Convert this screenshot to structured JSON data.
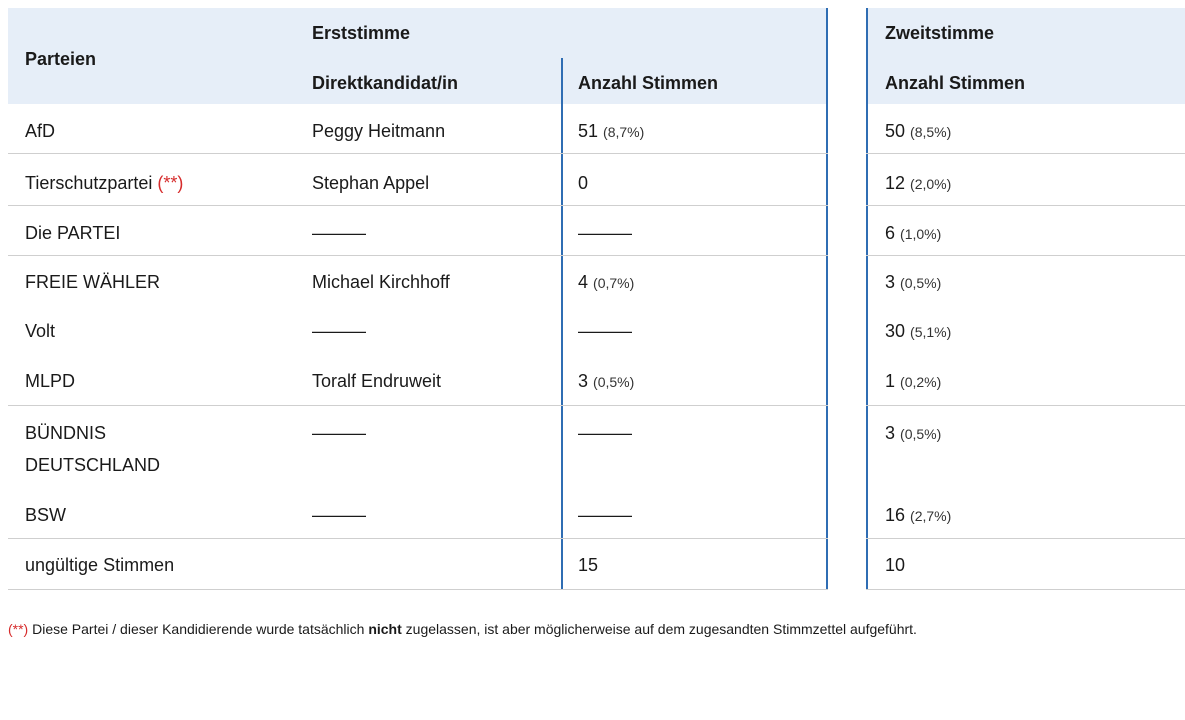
{
  "header": {
    "parteien": "Parteien",
    "erststimme": "Erststimme",
    "zweitstimme": "Zweitstimme",
    "direktkandidat": "Direktkandidat/in",
    "anzahl_erst": "Anzahl Stimmen",
    "anzahl_zweit": "Anzahl Stimmen"
  },
  "rows": [
    {
      "party": "AfD",
      "marker": "",
      "candidate": "Peggy Heitmann",
      "erst": "51",
      "erst_pct": "(8,7%)",
      "zweit": "50",
      "zweit_pct": "(8,5%)"
    },
    {
      "party": "Tierschutzpartei",
      "marker": "(**)",
      "candidate": "Stephan Appel",
      "erst": "0",
      "erst_pct": "",
      "zweit": "12",
      "zweit_pct": "(2,0%)"
    },
    {
      "party": "Die PARTEI",
      "marker": "",
      "candidate": "———",
      "erst": "———",
      "erst_pct": "",
      "zweit": "6",
      "zweit_pct": "(1,0%)"
    },
    {
      "party": "FREIE WÄHLER",
      "marker": "",
      "candidate": "Michael Kirchhoff",
      "erst": "4",
      "erst_pct": "(0,7%)",
      "zweit": "3",
      "zweit_pct": "(0,5%)"
    },
    {
      "party": "Volt",
      "marker": "",
      "candidate": "———",
      "erst": "———",
      "erst_pct": "",
      "zweit": "30",
      "zweit_pct": "(5,1%)"
    },
    {
      "party": "MLPD",
      "marker": "",
      "candidate": "Toralf Endruweit",
      "erst": "3",
      "erst_pct": "(0,5%)",
      "zweit": "1",
      "zweit_pct": "(0,2%)"
    },
    {
      "party": "BÜNDNIS",
      "party2": "DEUTSCHLAND",
      "marker": "",
      "candidate": "———",
      "erst": "———",
      "erst_pct": "",
      "zweit": "3",
      "zweit_pct": "(0,5%)"
    },
    {
      "party": "BSW",
      "marker": "",
      "candidate": "———",
      "erst": "———",
      "erst_pct": "",
      "zweit": "16",
      "zweit_pct": "(2,7%)"
    },
    {
      "party": "ungültige Stimmen",
      "marker": "",
      "candidate": "",
      "erst": "15",
      "erst_pct": "",
      "zweit": "10",
      "zweit_pct": ""
    }
  ],
  "footnote": {
    "marker": "(**)",
    "text_before": " Diese Partei / dieser Kandidierende wurde tatsächlich ",
    "bold": "nicht",
    "text_after": " zugelassen, ist aber möglicherweise auf dem zugesandten Stimmzettel aufgeführt."
  },
  "colors": {
    "header_bg": "#e6eef8",
    "divider": "#2f6db3",
    "marker": "#d62b2b"
  }
}
